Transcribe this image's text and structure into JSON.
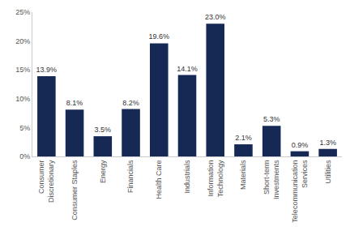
{
  "chart_data": {
    "type": "bar",
    "categories": [
      "Consumer\nDiscretionary",
      "Consumer Staples",
      "Energy",
      "Financials",
      "Health Care",
      "Industrials",
      "Information\nTechnology",
      "Materials",
      "Short-term\nInvestments",
      "Telecommunication\nServices",
      "Utilities"
    ],
    "values": [
      13.9,
      8.1,
      3.5,
      8.2,
      19.6,
      14.1,
      23.0,
      2.1,
      5.3,
      0.9,
      1.3
    ],
    "value_labels": [
      "13.9%",
      "8.1%",
      "3.5%",
      "8.2%",
      "19.6%",
      "14.1%",
      "23.0%",
      "2.1%",
      "5.3%",
      "0.9%",
      "1.3%"
    ],
    "data_labels": true,
    "color": "#162955",
    "ylim": [
      0,
      25
    ],
    "yticks": [
      {
        "value": 0,
        "label": "0%"
      },
      {
        "value": 5,
        "label": "5%"
      },
      {
        "value": 10,
        "label": "10%"
      },
      {
        "value": 15,
        "label": "15%"
      },
      {
        "value": 20,
        "label": "20%"
      },
      {
        "value": 25,
        "label": "25%"
      }
    ],
    "grid": false
  }
}
